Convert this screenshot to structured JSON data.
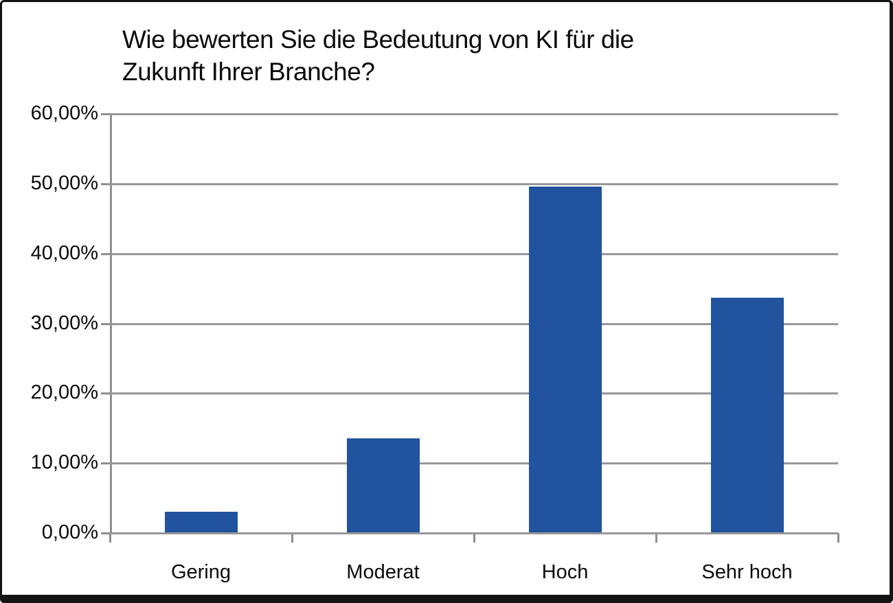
{
  "chart_data": {
    "type": "bar",
    "title": "Wie bewerten Sie die Bedeutung von KI für die Zukunft Ihrer Branche?",
    "title_lines": [
      "Wie bewerten Sie die Bedeutung von KI für die",
      "Zukunft Ihrer Branche?"
    ],
    "categories": [
      "Gering",
      "Moderat",
      "Hoch",
      "Sehr hoch"
    ],
    "values": [
      3.0,
      13.6,
      49.6,
      33.7
    ],
    "xlabel": "",
    "ylabel": "",
    "ylim": [
      0,
      60
    ],
    "y_tick_step": 10,
    "y_tick_labels": [
      "0,00%",
      "10,00%",
      "20,00%",
      "30,00%",
      "40,00%",
      "50,00%",
      "60,00%"
    ],
    "grid": true,
    "legend": "none",
    "bar_color": "#21539F",
    "gridline_color": "#979797",
    "text_color": "#0b0b0b",
    "frame_border_color": "#141414"
  }
}
